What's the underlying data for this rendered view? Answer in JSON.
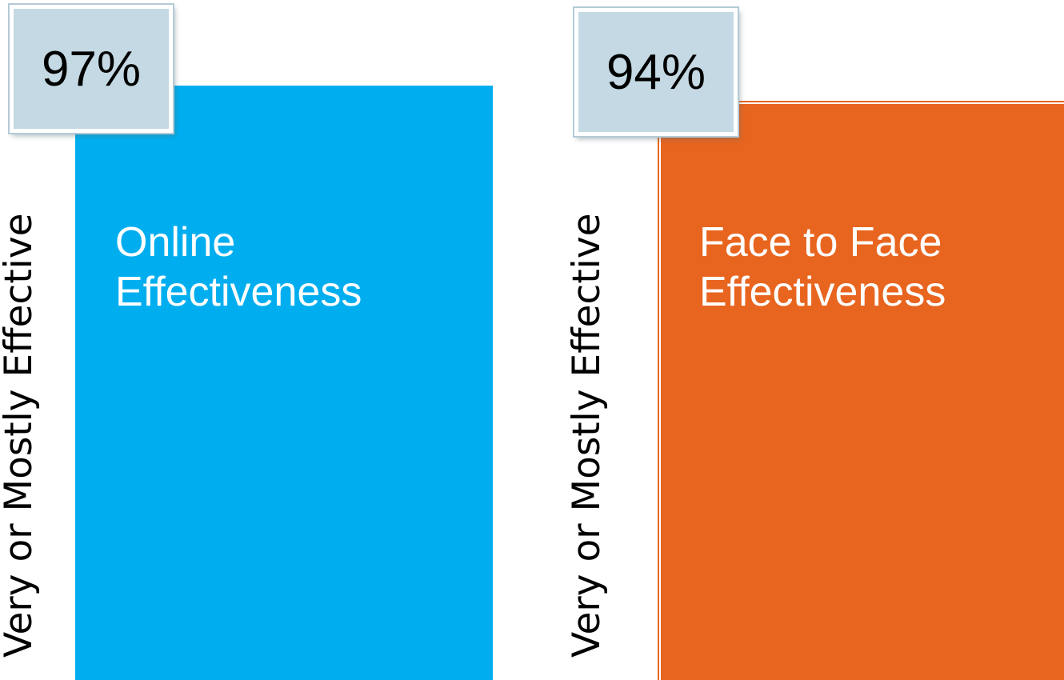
{
  "chart_data": [
    {
      "type": "bar",
      "title": "Online\nEffectiveness",
      "ylabel": "Very or Mostly Effective",
      "value_label": "97%",
      "values": [
        97
      ],
      "ylim": [
        0,
        100
      ],
      "color": "#00aeef"
    },
    {
      "type": "bar",
      "title": "Face to Face\nEffectiveness",
      "ylabel": "Very or Mostly Effective",
      "value_label": "94%",
      "values": [
        94
      ],
      "ylim": [
        0,
        100
      ],
      "color": "#e8651f"
    }
  ]
}
